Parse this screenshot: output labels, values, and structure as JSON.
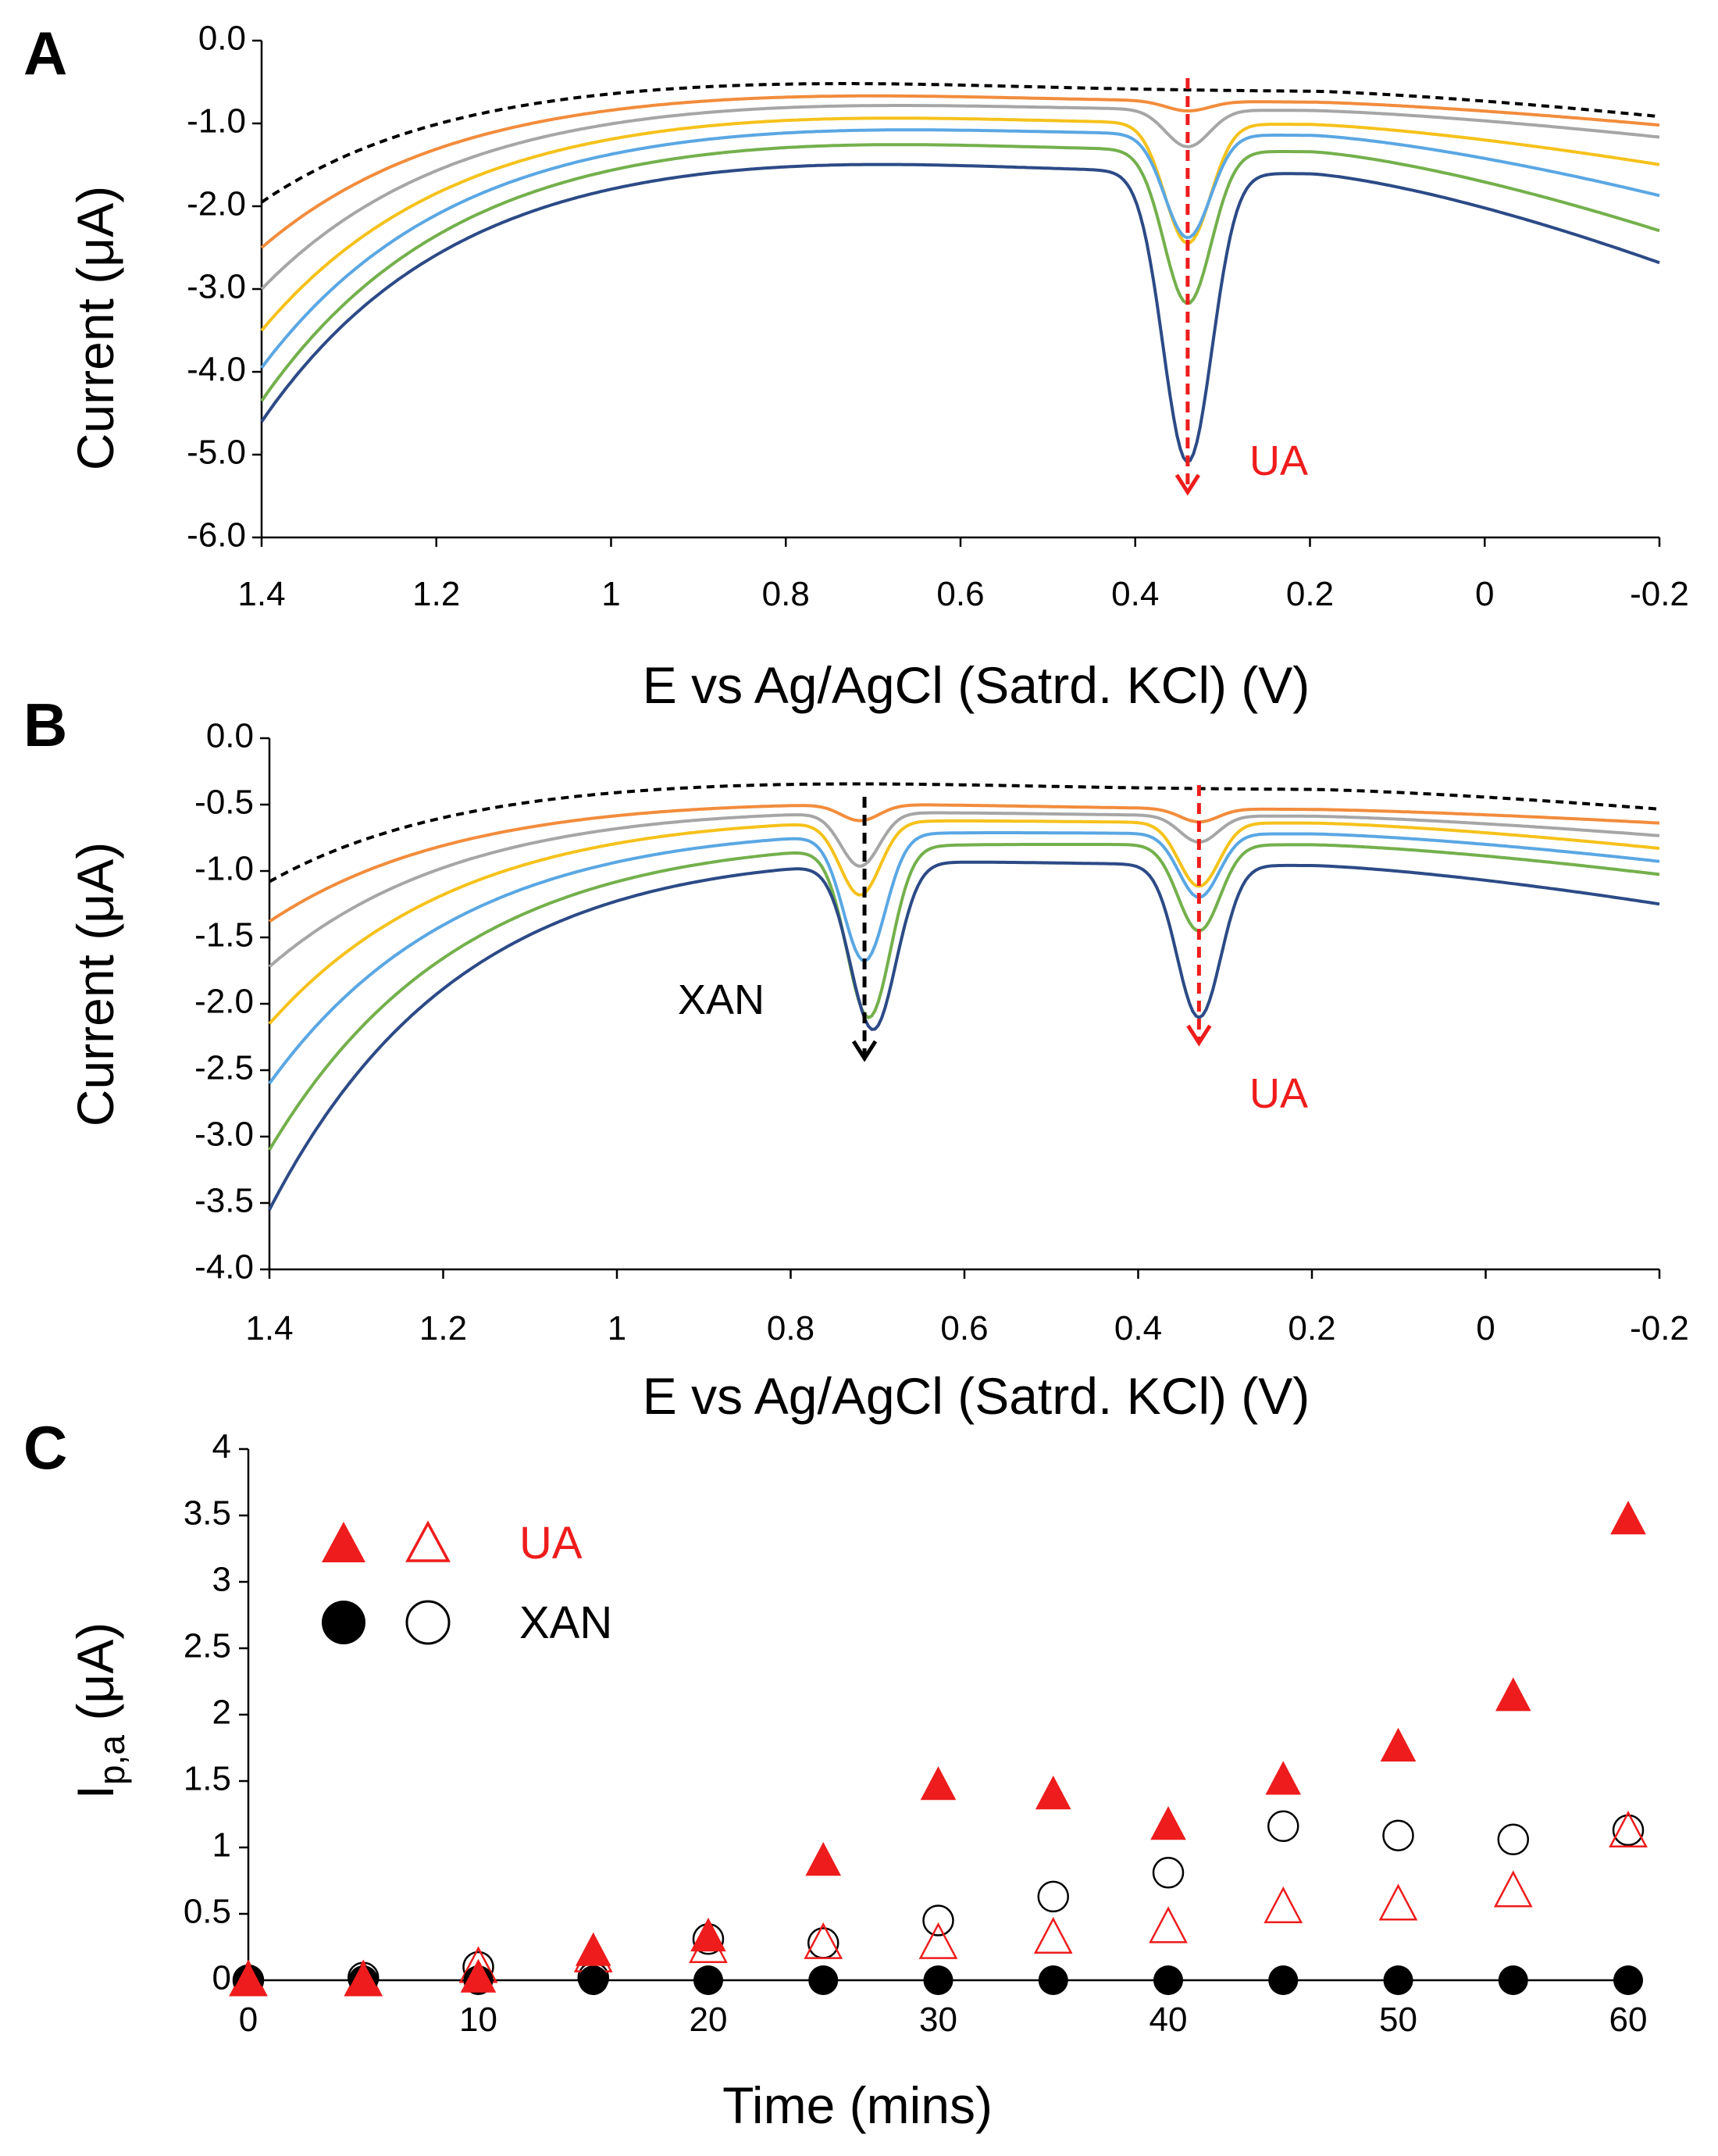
{
  "panels": {
    "A": {
      "letter": "A",
      "annotation_ua": "UA"
    },
    "B": {
      "letter": "B",
      "annotation_xan": "XAN",
      "annotation_ua": "UA"
    },
    "C": {
      "letter": "C"
    }
  },
  "colors": {
    "ua": "#ee1c1c",
    "xan": "#000000",
    "series": [
      "#000000",
      "#f28c3c",
      "#a6a6a6",
      "#f5c21b",
      "#5aa7e3",
      "#74b04c",
      "#2c4a86"
    ]
  },
  "chart_data": [
    {
      "id": "A",
      "type": "line",
      "title": "",
      "xlabel": "E vs Ag/AgCl (Satrd. KCl) (V)",
      "ylabel": "Current (μA)",
      "xlim": [
        1.4,
        -0.2
      ],
      "ylim": [
        -6.0,
        0.0
      ],
      "x_ticks": [
        "1.4",
        "1.2",
        "1",
        "0.8",
        "0.6",
        "0.4",
        "0.2",
        "0",
        "-0.2"
      ],
      "y_ticks": [
        "0.0",
        "-1.0",
        "-2.0",
        "-3.0",
        "-4.0",
        "-5.0",
        "-6.0"
      ],
      "peaks": [
        {
          "label": "UA",
          "E": 0.34
        }
      ],
      "series": [
        {
          "name": "curve-1",
          "style": "dashed",
          "start": -1.95,
          "plateau": -0.37,
          "endval": -0.95,
          "peaks": [],
          "tailDrop": 0.25
        },
        {
          "name": "curve-2",
          "style": "solid",
          "start": -2.5,
          "plateau": -0.5,
          "endval": -1.05,
          "peaks": [
            {
              "c": 0.34,
              "h": 0.12,
              "w": 0.025
            }
          ],
          "tailDrop": 0.25
        },
        {
          "name": "curve-3",
          "style": "solid",
          "start": -3.0,
          "plateau": -0.6,
          "endval": -1.2,
          "peaks": [
            {
              "c": 0.34,
              "h": 0.45,
              "w": 0.025
            }
          ],
          "tailDrop": 0.25
        },
        {
          "name": "curve-4",
          "style": "solid",
          "start": -3.5,
          "plateau": -0.72,
          "endval": -1.55,
          "peaks": [
            {
              "c": 0.34,
              "h": 1.45,
              "w": 0.026
            }
          ],
          "tailDrop": 0.3
        },
        {
          "name": "curve-5",
          "style": "solid",
          "start": -3.95,
          "plateau": -0.85,
          "endval": -1.95,
          "peaks": [
            {
              "c": 0.34,
              "h": 1.25,
              "w": 0.026
            }
          ],
          "tailDrop": 0.3
        },
        {
          "name": "curve-6",
          "style": "solid",
          "start": -4.35,
          "plateau": -1.0,
          "endval": -2.4,
          "peaks": [
            {
              "c": 0.34,
              "h": 1.85,
              "w": 0.027
            }
          ],
          "tailDrop": 0.35
        },
        {
          "name": "curve-7",
          "style": "solid",
          "start": -4.6,
          "plateau": -1.22,
          "endval": -2.8,
          "peaks": [
            {
              "c": 0.34,
              "h": 3.5,
              "w": 0.028
            }
          ],
          "tailDrop": 0.4
        }
      ]
    },
    {
      "id": "B",
      "type": "line",
      "title": "",
      "xlabel": "E vs Ag/AgCl (Satrd. KCl) (V)",
      "ylabel": "Current (μA)",
      "xlim": [
        1.4,
        -0.2
      ],
      "ylim": [
        -4.0,
        0.0
      ],
      "x_ticks": [
        "1.4",
        "1.2",
        "1",
        "0.8",
        "0.6",
        "0.4",
        "0.2",
        "0",
        "-0.2"
      ],
      "y_ticks": [
        "0.0",
        "-0.5",
        "-1.0",
        "-1.5",
        "-2.0",
        "-2.5",
        "-3.0",
        "-3.5",
        "-4.0"
      ],
      "peaks": [
        {
          "label": "XAN",
          "E": 0.715
        },
        {
          "label": "UA",
          "E": 0.33
        }
      ],
      "series": [
        {
          "name": "curve-1",
          "style": "dashed",
          "start": -1.08,
          "plateau": -0.27,
          "endval": -0.55,
          "peaks": [],
          "tailDrop": 0.12
        },
        {
          "name": "curve-2",
          "style": "solid",
          "start": -1.38,
          "plateau": -0.42,
          "endval": -0.65,
          "peaks": [
            {
              "c": 0.72,
              "h": 0.12,
              "w": 0.022
            },
            {
              "c": 0.33,
              "h": 0.1,
              "w": 0.022
            }
          ],
          "tailDrop": 0.12
        },
        {
          "name": "curve-3",
          "style": "solid",
          "start": -1.72,
          "plateau": -0.47,
          "endval": -0.75,
          "peaks": [
            {
              "c": 0.72,
              "h": 0.4,
              "w": 0.022
            },
            {
              "c": 0.33,
              "h": 0.2,
              "w": 0.022
            }
          ],
          "tailDrop": 0.12
        },
        {
          "name": "curve-4",
          "style": "solid",
          "start": -2.15,
          "plateau": -0.52,
          "endval": -0.85,
          "peaks": [
            {
              "c": 0.72,
              "h": 0.55,
              "w": 0.023
            },
            {
              "c": 0.33,
              "h": 0.48,
              "w": 0.023
            }
          ],
          "tailDrop": 0.12
        },
        {
          "name": "curve-5",
          "style": "solid",
          "start": -2.6,
          "plateau": -0.6,
          "endval": -0.95,
          "peaks": [
            {
              "c": 0.715,
              "h": 0.95,
              "w": 0.024
            },
            {
              "c": 0.33,
              "h": 0.48,
              "w": 0.023
            }
          ],
          "tailDrop": 0.12
        },
        {
          "name": "curve-6",
          "style": "solid",
          "start": -3.1,
          "plateau": -0.68,
          "endval": -1.05,
          "peaks": [
            {
              "c": 0.71,
              "h": 1.28,
              "w": 0.025
            },
            {
              "c": 0.33,
              "h": 0.65,
              "w": 0.024
            }
          ],
          "tailDrop": 0.12
        },
        {
          "name": "curve-7",
          "style": "solid",
          "start": -3.55,
          "plateau": -0.76,
          "endval": -1.28,
          "peaks": [
            {
              "c": 0.705,
              "h": 1.25,
              "w": 0.026
            },
            {
              "c": 0.33,
              "h": 1.15,
              "w": 0.025
            }
          ],
          "tailDrop": 0.2
        }
      ]
    },
    {
      "id": "C",
      "type": "scatter",
      "title": "",
      "xlabel": "Time (mins)",
      "ylabel_main": "I",
      "ylabel_sub": "p,a",
      "ylabel_unit": " (μA)",
      "xlim": [
        0,
        60
      ],
      "ylim": [
        0,
        4
      ],
      "x_ticks": [
        "0",
        "10",
        "20",
        "30",
        "40",
        "50",
        "60"
      ],
      "y_ticks": [
        "4",
        "3.5",
        "3",
        "2.5",
        "2",
        "1.5",
        "1",
        "0.5",
        "0"
      ],
      "legend": {
        "ua_label": "UA",
        "xan_label": "XAN",
        "position": "top-left"
      },
      "x": [
        0,
        5,
        10,
        15,
        20,
        25,
        30,
        35,
        40,
        45,
        50,
        55,
        60
      ],
      "series": [
        {
          "name": "UA filled",
          "marker": "triangle",
          "filled": true,
          "color": "#ee1c1c",
          "values": [
            0,
            0,
            0.02,
            0.22,
            0.33,
            0.9,
            1.47,
            1.4,
            1.17,
            1.51,
            1.76,
            2.14,
            3.47
          ]
        },
        {
          "name": "UA open",
          "marker": "triangle",
          "filled": false,
          "color": "#ee1c1c",
          "values": [
            0,
            0,
            0.1,
            0.18,
            0.25,
            0.28,
            0.28,
            0.32,
            0.4,
            0.55,
            0.57,
            0.67,
            1.12
          ]
        },
        {
          "name": "XAN filled",
          "marker": "circle",
          "filled": true,
          "color": "#000000",
          "values": [
            0,
            0,
            0,
            0,
            0,
            0,
            0,
            0,
            0,
            0,
            0,
            0,
            0
          ]
        },
        {
          "name": "XAN open",
          "marker": "circle",
          "filled": false,
          "color": "#000000",
          "values": [
            0,
            0.02,
            0.1,
            0.02,
            0.31,
            0.28,
            0.45,
            0.63,
            0.81,
            1.16,
            1.09,
            1.06,
            1.13
          ]
        }
      ]
    }
  ]
}
